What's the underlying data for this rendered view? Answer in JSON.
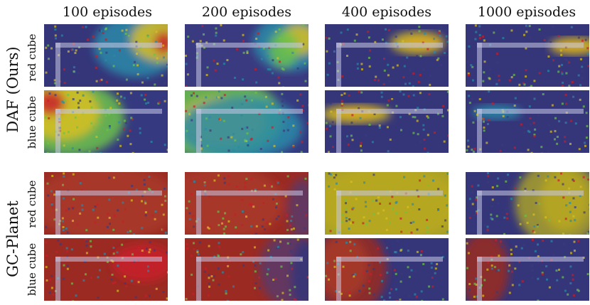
{
  "columns": [
    "100 episodes",
    "200 episodes",
    "400 episodes",
    "1000 episodes"
  ],
  "groups": [
    {
      "label": "DAF (Ours)",
      "rows": [
        "red cube",
        "blue cube"
      ]
    },
    {
      "label": "GC-Planet",
      "rows": [
        "red cube",
        "blue cube"
      ]
    }
  ],
  "colors": {
    "low": "#3a3a7a",
    "mid_low": "#2a8aa8",
    "mid": "#6cc24a",
    "mid_high": "#d8c020",
    "high": "#c8202a",
    "wall": "#c8c8e6"
  },
  "panels": [
    {
      "base": "#35357a",
      "blobs": [
        [
          "#2a8aa8",
          0.75,
          0.35,
          0.35,
          0.5
        ],
        [
          "#d8c020",
          0.95,
          0.25,
          0.25,
          0.35
        ],
        [
          "#c8202a",
          0.97,
          0.3,
          0.08,
          0.18
        ]
      ]
    },
    {
      "base": "#3a3a80",
      "blobs": [
        [
          "#2a8aa8",
          0.85,
          0.3,
          0.3,
          0.45
        ],
        [
          "#d8c020",
          0.92,
          0.25,
          0.15,
          0.25
        ],
        [
          "#6cc24a",
          0.8,
          0.4,
          0.12,
          0.3
        ]
      ]
    },
    {
      "base": "#35357a",
      "blobs": [
        [
          "#c8202a",
          0.8,
          0.3,
          0.16,
          0.12
        ],
        [
          "#d8c020",
          0.75,
          0.3,
          0.22,
          0.18
        ]
      ]
    },
    {
      "base": "#35357a",
      "blobs": [
        [
          "#c8202a",
          0.85,
          0.35,
          0.15,
          0.1
        ],
        [
          "#d8c020",
          0.88,
          0.35,
          0.2,
          0.14
        ]
      ]
    },
    {
      "base": "#353a80",
      "blobs": [
        [
          "#6cc24a",
          0.2,
          0.45,
          0.45,
          0.6
        ],
        [
          "#d8c020",
          0.15,
          0.35,
          0.3,
          0.45
        ],
        [
          "#c8202a",
          0.05,
          0.2,
          0.12,
          0.2
        ]
      ]
    },
    {
      "base": "#353a80",
      "blobs": [
        [
          "#6cc24a",
          0.25,
          0.45,
          0.55,
          0.65
        ],
        [
          "#d8c020",
          0.3,
          0.5,
          0.35,
          0.4
        ],
        [
          "#2a8aa8",
          0.45,
          0.6,
          0.5,
          0.5
        ]
      ]
    },
    {
      "base": "#35357a",
      "blobs": [
        [
          "#c8202a",
          0.25,
          0.35,
          0.18,
          0.1
        ],
        [
          "#d8c020",
          0.25,
          0.38,
          0.28,
          0.15
        ]
      ]
    },
    {
      "base": "#35357a",
      "blobs": [
        [
          "#2a8aa8",
          0.25,
          0.35,
          0.2,
          0.12
        ]
      ]
    },
    {
      "base": "#9a2a22",
      "blobs": [
        [
          "#a83a28",
          0.5,
          0.5,
          0.6,
          0.6
        ]
      ]
    },
    {
      "base": "#9a2a22",
      "blobs": [
        [
          "#a83a28",
          0.3,
          0.5,
          0.5,
          0.6
        ],
        [
          "#5a3a6a",
          0.95,
          0.6,
          0.12,
          0.5
        ]
      ]
    },
    {
      "base": "#a8a028",
      "blobs": [
        [
          "#b8a820",
          0.5,
          0.5,
          0.6,
          0.6
        ]
      ]
    },
    {
      "base": "#35357a",
      "blobs": [
        [
          "#a8a028",
          0.75,
          0.5,
          0.35,
          0.7
        ],
        [
          "#b8a820",
          0.8,
          0.45,
          0.2,
          0.5
        ]
      ]
    },
    {
      "base": "#9a2a22",
      "blobs": [
        [
          "#c8202a",
          0.8,
          0.4,
          0.25,
          0.3
        ]
      ]
    },
    {
      "base": "#9a2a22",
      "blobs": [
        [
          "#5a3a6a",
          0.85,
          0.5,
          0.25,
          0.6
        ],
        [
          "#35357a",
          0.98,
          0.6,
          0.12,
          0.6
        ]
      ]
    },
    {
      "base": "#35357a",
      "blobs": [
        [
          "#9a2a22",
          0.2,
          0.5,
          0.3,
          0.7
        ],
        [
          "#a83a28",
          0.15,
          0.45,
          0.2,
          0.5
        ]
      ]
    },
    {
      "base": "#35357a",
      "blobs": [
        [
          "#9a2a22",
          0.15,
          0.5,
          0.2,
          0.6
        ]
      ]
    }
  ]
}
